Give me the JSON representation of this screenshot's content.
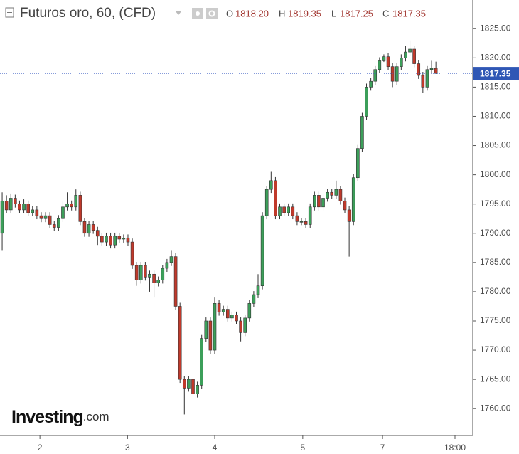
{
  "chart_data": {
    "type": "candlestick",
    "title": "Futuros oro, 60, (CFD)",
    "ohlc_header": {
      "open_label": "O",
      "open": "1818.20",
      "high_label": "H",
      "high": "1819.35",
      "low_label": "L",
      "low": "1817.25",
      "close_label": "C",
      "close": "1817.35"
    },
    "watermark": "Investing",
    "watermark_suffix": ".com",
    "up_color": "#3c9f5a",
    "down_color": "#c0392b",
    "wick_color": "#333333",
    "last_price": {
      "value": 1817.35,
      "label": "1817.35"
    },
    "x": [
      0,
      1,
      2,
      3,
      4,
      5,
      6,
      7,
      8,
      9,
      10,
      11,
      12,
      13,
      14,
      15,
      16,
      17,
      18,
      19,
      20,
      21,
      22,
      23,
      24,
      25,
      26,
      27,
      28,
      29,
      30,
      31,
      32,
      33,
      34,
      35,
      36,
      37,
      38,
      39,
      40,
      41,
      42,
      43,
      44,
      45,
      46,
      47,
      48,
      49,
      50,
      51,
      52,
      53,
      54,
      55,
      56,
      57,
      58,
      59,
      60,
      61,
      62,
      63,
      64,
      65,
      66,
      67,
      68,
      69,
      70,
      71,
      72,
      73,
      74,
      75,
      76,
      77,
      78,
      79,
      80,
      81,
      82,
      83,
      84,
      85,
      86,
      87,
      88,
      89,
      90,
      91,
      92,
      93,
      94,
      95,
      96,
      97,
      98,
      99,
      100
    ],
    "open": [
      1790,
      1795.5,
      1794,
      1796,
      1795,
      1794,
      1795,
      1793.5,
      1794,
      1793,
      1792.5,
      1793,
      1791.5,
      1791,
      1792.5,
      1794.5,
      1795,
      1794.5,
      1796.5,
      1792,
      1790,
      1791.5,
      1790.5,
      1789.5,
      1788.5,
      1789.5,
      1788,
      1789.5,
      1789,
      1789.2,
      1788.5,
      1784.5,
      1782,
      1784.5,
      1782.5,
      1783,
      1781.5,
      1782,
      1784,
      1785,
      1786,
      1777.5,
      1765,
      1763.5,
      1765,
      1762.5,
      1764,
      1772,
      1775,
      1770,
      1778,
      1776.5,
      1777,
      1775.5,
      1776,
      1775,
      1773,
      1775.5,
      1778,
      1779.5,
      1781,
      1793,
      1797.5,
      1799,
      1793,
      1794.5,
      1793.5,
      1794.5,
      1793,
      1792,
      1792,
      1791.5,
      1794.5,
      1796.5,
      1794.5,
      1796,
      1797,
      1796.5,
      1797.5,
      1795.5,
      1794,
      1792,
      1799.5,
      1804.5,
      1810,
      1815,
      1816,
      1818,
      1819.5,
      1820.2,
      1818.5,
      1816,
      1818.5,
      1820,
      1821,
      1821.5,
      1819,
      1817,
      1815,
      1818,
      1818.2
    ],
    "high": [
      1797,
      1796.5,
      1796.8,
      1796.6,
      1795.6,
      1795.8,
      1795.6,
      1794.6,
      1794.6,
      1793.6,
      1793.6,
      1793.6,
      1792.1,
      1793.1,
      1795.4,
      1797,
      1795.6,
      1797.5,
      1797.1,
      1792.6,
      1792.1,
      1792.1,
      1791.1,
      1790.1,
      1790.1,
      1790.1,
      1790.1,
      1790.1,
      1789.8,
      1789.8,
      1789.1,
      1785.1,
      1785.1,
      1785.1,
      1783.6,
      1783.6,
      1782.6,
      1784.6,
      1785.6,
      1787,
      1786.6,
      1778.1,
      1765.6,
      1765.6,
      1765.6,
      1764.6,
      1772.6,
      1775.6,
      1775.6,
      1779,
      1778.6,
      1777.6,
      1777.6,
      1776.6,
      1776.6,
      1775.6,
      1776.1,
      1778.6,
      1780.1,
      1783,
      1793.6,
      1798.1,
      1800.5,
      1799.6,
      1795.1,
      1795.1,
      1795.1,
      1795.1,
      1793.6,
      1792.6,
      1792.6,
      1795.1,
      1797.1,
      1797.1,
      1796.6,
      1797.6,
      1797.6,
      1799,
      1798.1,
      1796.1,
      1794.6,
      1800.1,
      1805.1,
      1810.6,
      1815.6,
      1816.6,
      1818.6,
      1820.1,
      1820.6,
      1820.8,
      1819.1,
      1819.1,
      1820.6,
      1822,
      1823,
      1822.1,
      1819.6,
      1817.6,
      1818.6,
      1819.5,
      1819.35
    ],
    "low": [
      1787,
      1793.5,
      1793.4,
      1794.4,
      1793.4,
      1793.4,
      1792.9,
      1792.9,
      1792.4,
      1791.9,
      1791.9,
      1790.9,
      1790.4,
      1790.4,
      1791.9,
      1793.9,
      1793.9,
      1793.9,
      1791.4,
      1789.4,
      1789.4,
      1789.9,
      1788,
      1787.9,
      1787.9,
      1787.4,
      1787.4,
      1788.4,
      1788.4,
      1787.9,
      1783.9,
      1781,
      1781.4,
      1781.9,
      1780,
      1779,
      1780.9,
      1781.4,
      1783.4,
      1784.4,
      1776.9,
      1764.4,
      1759,
      1762.9,
      1761.9,
      1761.9,
      1763.4,
      1771.4,
      1769.4,
      1769.4,
      1775.9,
      1775.9,
      1774.9,
      1774.9,
      1774.4,
      1771.5,
      1772.4,
      1774.9,
      1777.4,
      1778.9,
      1780.4,
      1792.4,
      1796.9,
      1792.4,
      1792.4,
      1792.9,
      1792.9,
      1792.4,
      1791.4,
      1791.4,
      1790.9,
      1790.9,
      1793.9,
      1793.9,
      1793.9,
      1795.4,
      1795.9,
      1795.9,
      1794.9,
      1793.4,
      1786,
      1791.4,
      1798.9,
      1803.9,
      1809.4,
      1814.4,
      1815.4,
      1817.4,
      1819.3,
      1817.9,
      1815,
      1815.4,
      1817.9,
      1819.4,
      1820.4,
      1818.4,
      1816.4,
      1814,
      1814.4,
      1817.4,
      1817.25
    ],
    "close": [
      1795.5,
      1794,
      1796,
      1795,
      1794,
      1795,
      1793.5,
      1794,
      1793,
      1792.5,
      1793,
      1791.5,
      1791,
      1792.5,
      1794.5,
      1795,
      1794.5,
      1796.5,
      1792,
      1790,
      1791.5,
      1790.5,
      1789.5,
      1788.5,
      1789.5,
      1788,
      1789.5,
      1789,
      1789.2,
      1788.5,
      1784.5,
      1782,
      1784.5,
      1782.5,
      1783,
      1781.5,
      1782,
      1784,
      1785,
      1786,
      1777.5,
      1765,
      1763.5,
      1765,
      1762.5,
      1764,
      1772,
      1775,
      1770,
      1778,
      1776.5,
      1777,
      1775.5,
      1776,
      1775,
      1773,
      1775.5,
      1778,
      1779.5,
      1781,
      1793,
      1797.5,
      1799,
      1793,
      1794.5,
      1793.5,
      1794.5,
      1793,
      1792,
      1792,
      1791.5,
      1794.5,
      1796.5,
      1794.5,
      1796,
      1797,
      1796.5,
      1797.5,
      1795.5,
      1794,
      1792,
      1799.5,
      1804.5,
      1810,
      1815,
      1816,
      1818,
      1819.5,
      1820.2,
      1818.5,
      1816,
      1818.5,
      1820,
      1821,
      1821.5,
      1819,
      1817,
      1815,
      1818,
      1818.2,
      1817.35
    ],
    "xlim": [
      -0.5,
      108.5
    ],
    "xticks": [
      {
        "value": 8.7,
        "label": "2"
      },
      {
        "value": 28.9,
        "label": "3"
      },
      {
        "value": 49,
        "label": "4"
      },
      {
        "value": 69.3,
        "label": "5"
      },
      {
        "value": 87.7,
        "label": "7"
      },
      {
        "value": 104.4,
        "label": "18:00"
      }
    ],
    "ylim": [
      1755.4,
      1829.9
    ],
    "yticks": [
      {
        "value": 1760,
        "label": "1760.00"
      },
      {
        "value": 1765,
        "label": "1765.00"
      },
      {
        "value": 1770,
        "label": "1770.00"
      },
      {
        "value": 1775,
        "label": "1775.00"
      },
      {
        "value": 1780,
        "label": "1780.00"
      },
      {
        "value": 1785,
        "label": "1785.00"
      },
      {
        "value": 1790,
        "label": "1790.00"
      },
      {
        "value": 1795,
        "label": "1795.00"
      },
      {
        "value": 1800,
        "label": "1800.00"
      },
      {
        "value": 1805,
        "label": "1805.00"
      },
      {
        "value": 1810,
        "label": "1810.00"
      },
      {
        "value": 1815,
        "label": "1815.00"
      },
      {
        "value": 1820,
        "label": "1820.00"
      },
      {
        "value": 1825,
        "label": "1825.00"
      }
    ]
  }
}
